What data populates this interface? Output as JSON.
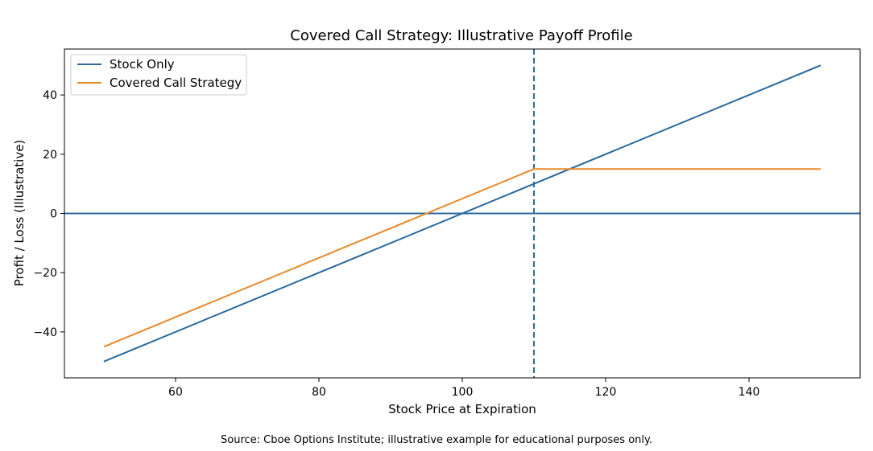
{
  "chart_data": {
    "type": "line",
    "title": "Covered Call Strategy: Illustrative Payoff Profile",
    "xlabel": "Stock Price at Expiration",
    "ylabel": "Profit / Loss (Illustrative)",
    "xlim": [
      44.5,
      155.5
    ],
    "ylim": [
      -55.5,
      55.5
    ],
    "xticks": [
      60,
      80,
      100,
      120,
      140
    ],
    "yticks": [
      -40,
      -20,
      0,
      20,
      40
    ],
    "xtick_labels": [
      "60",
      "80",
      "100",
      "120",
      "140"
    ],
    "ytick_labels": [
      "−40",
      "−20",
      "0",
      "20",
      "40"
    ],
    "series": [
      {
        "name": "Stock Only",
        "color": "#2b6a9c",
        "x": [
          50,
          150
        ],
        "y": [
          -50,
          50
        ]
      },
      {
        "name": "Covered Call Strategy",
        "color": "#e8892a",
        "x": [
          50,
          110,
          150
        ],
        "y": [
          -45,
          15,
          15
        ]
      }
    ],
    "reference_lines": [
      {
        "orientation": "horizontal",
        "value": 0,
        "style": "solid",
        "color": "#2b6a9c"
      },
      {
        "orientation": "vertical",
        "value": 110,
        "style": "dashed",
        "color": "#2b6a9c"
      }
    ],
    "legend_position": "top-left"
  },
  "footer": {
    "source": "Source: Cboe Options Institute; illustrative example for educational purposes only."
  }
}
